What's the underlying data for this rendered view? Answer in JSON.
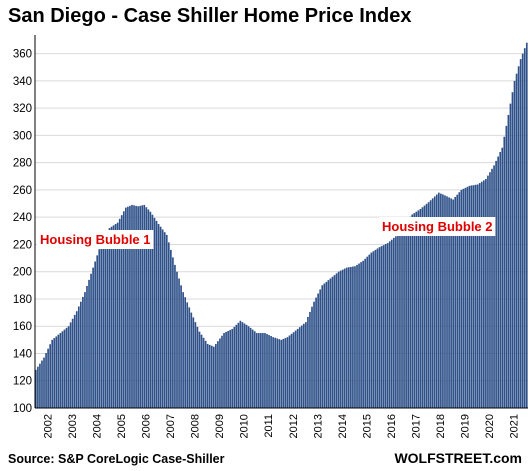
{
  "title": "San Diego - Case Shiller Home Price Index",
  "source": "Source: S&P CoreLogic Case-Shiller",
  "brand": "WOLFSTREET.com",
  "colors": {
    "bar": "#2f5189",
    "annotation": "#e00000",
    "grid": "#d9d9d9"
  },
  "chart_data": {
    "type": "bar",
    "title": "San Diego - Case Shiller Home Price Index",
    "xlabel": "",
    "ylabel": "",
    "ylim": [
      100,
      370
    ],
    "yticks": [
      100,
      120,
      140,
      160,
      180,
      200,
      220,
      240,
      260,
      280,
      300,
      320,
      340,
      360
    ],
    "x_tick_labels": [
      "2002",
      "2003",
      "2004",
      "2005",
      "2006",
      "2007",
      "2008",
      "2009",
      "2010",
      "2011",
      "2012",
      "2013",
      "2014",
      "2015",
      "2016",
      "2017",
      "2018",
      "2019",
      "2020",
      "2021"
    ],
    "grid": "horizontal",
    "frequency": "monthly",
    "start": "2002-01",
    "annotations": [
      {
        "text": "Housing Bubble 1",
        "at": "2005-06"
      },
      {
        "text": "Housing Bubble 2",
        "at": "2018-01"
      }
    ],
    "anchors": [
      [
        "2002-01",
        128
      ],
      [
        "2002-05",
        137
      ],
      [
        "2002-09",
        150
      ],
      [
        "2003-01",
        155
      ],
      [
        "2003-05",
        160
      ],
      [
        "2003-09",
        171
      ],
      [
        "2004-01",
        185
      ],
      [
        "2004-05",
        203
      ],
      [
        "2004-09",
        221
      ],
      [
        "2005-01",
        232
      ],
      [
        "2005-05",
        236
      ],
      [
        "2005-09",
        247
      ],
      [
        "2005-12",
        249
      ],
      [
        "2006-03",
        248
      ],
      [
        "2006-06",
        249
      ],
      [
        "2006-09",
        244
      ],
      [
        "2007-01",
        235
      ],
      [
        "2007-05",
        227
      ],
      [
        "2007-09",
        205
      ],
      [
        "2008-01",
        185
      ],
      [
        "2008-05",
        170
      ],
      [
        "2008-09",
        156
      ],
      [
        "2009-01",
        147
      ],
      [
        "2009-04",
        145
      ],
      [
        "2009-09",
        155
      ],
      [
        "2010-01",
        158
      ],
      [
        "2010-05",
        164
      ],
      [
        "2010-09",
        160
      ],
      [
        "2011-01",
        155
      ],
      [
        "2011-05",
        155
      ],
      [
        "2011-09",
        152
      ],
      [
        "2012-01",
        150
      ],
      [
        "2012-04",
        152
      ],
      [
        "2012-09",
        158
      ],
      [
        "2013-01",
        163
      ],
      [
        "2013-05",
        178
      ],
      [
        "2013-09",
        190
      ],
      [
        "2014-01",
        195
      ],
      [
        "2014-05",
        200
      ],
      [
        "2014-09",
        203
      ],
      [
        "2015-01",
        204
      ],
      [
        "2015-05",
        208
      ],
      [
        "2015-09",
        214
      ],
      [
        "2016-01",
        218
      ],
      [
        "2016-05",
        221
      ],
      [
        "2016-09",
        226
      ],
      [
        "2017-01",
        235
      ],
      [
        "2017-05",
        242
      ],
      [
        "2017-09",
        246
      ],
      [
        "2018-01",
        251
      ],
      [
        "2018-06",
        258
      ],
      [
        "2018-09",
        256
      ],
      [
        "2019-01",
        253
      ],
      [
        "2019-05",
        260
      ],
      [
        "2019-09",
        263
      ],
      [
        "2020-01",
        264
      ],
      [
        "2020-05",
        268
      ],
      [
        "2020-09",
        278
      ],
      [
        "2021-01",
        291
      ],
      [
        "2021-04",
        315
      ],
      [
        "2021-07",
        340
      ],
      [
        "2021-10",
        356
      ],
      [
        "2022-01",
        368
      ]
    ]
  }
}
